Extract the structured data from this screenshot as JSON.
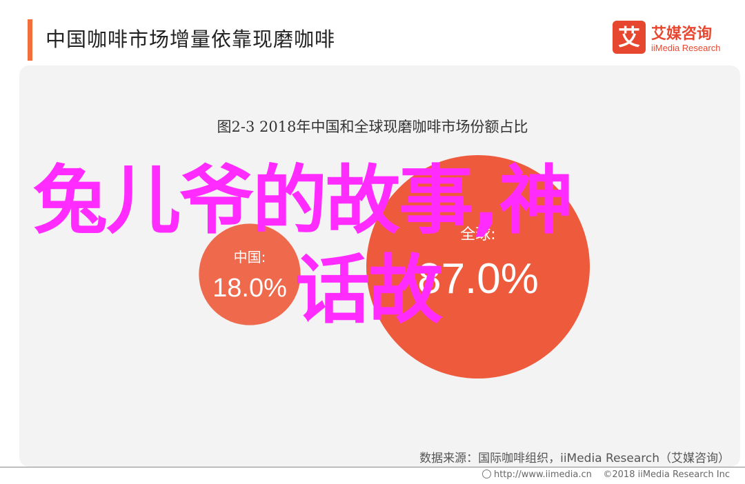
{
  "header": {
    "title": "中国咖啡市场增量依靠现磨咖啡",
    "accent_color": "#f26f3b"
  },
  "brand": {
    "mark": "艾",
    "name": "艾媒咨询",
    "name_en": "iiMedia Research",
    "color": "#e8472f"
  },
  "chart_data": {
    "type": "pie",
    "title": "图2-3 2018年中国和全球现磨咖啡市场份额占比",
    "slices": [
      {
        "label": "中国:",
        "value": 18.0,
        "value_label": "18.0%",
        "color": "#ef6a4c"
      },
      {
        "label": "全球:",
        "value": 87.0,
        "value_label": "87.0%",
        "color": "#ee5a3c"
      }
    ]
  },
  "source": "数据来源：国际咖啡组织，iiMedia Research（艾媒咨询）",
  "footer": {
    "url": "http://www.iimedia.cn",
    "copyright": "©2018  iiMedia Research  Inc"
  },
  "overlay": {
    "line1": "兔儿爷的故事,神",
    "line2": "话故",
    "color": "#ff2bff"
  }
}
